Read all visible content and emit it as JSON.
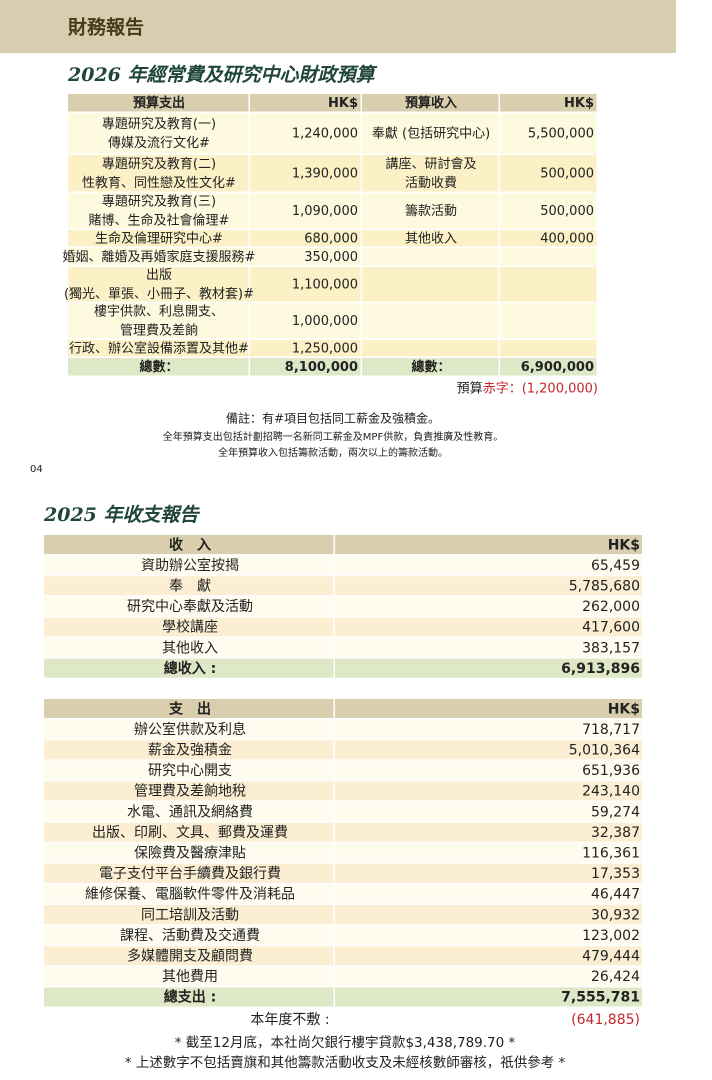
{
  "header": {
    "title": "財務報告",
    "page_number": "04"
  },
  "budget": {
    "title": "2026 年經常費及研究中心財政預算",
    "headers": [
      "預算支出",
      "HK$",
      "預算收入",
      "HK$"
    ],
    "rows": [
      {
        "expense": [
          "專題研究及教育(一)",
          "傳媒及流行文化#"
        ],
        "expense_hkd": "1,240,000",
        "income": [
          "奉獻 (包括研究中心)"
        ],
        "income_hkd": "5,500,000"
      },
      {
        "expense": [
          "專題研究及教育(二)",
          "性教育、同性戀及性文化#"
        ],
        "expense_hkd": "1,390,000",
        "income": [
          "講座、研討會及",
          "活動收費"
        ],
        "income_hkd": "500,000"
      },
      {
        "expense": [
          "專題研究及教育(三)",
          "賭博、生命及社會倫理#"
        ],
        "expense_hkd": "1,090,000",
        "income": [
          "籌款活動"
        ],
        "income_hkd": "500,000"
      },
      {
        "expense": [
          "生命及倫理研究中心#"
        ],
        "expense_hkd": "680,000",
        "income": [
          "其他收入"
        ],
        "income_hkd": "400,000"
      },
      {
        "expense": [
          "婚姻、離婚及再婚家庭支援服務#"
        ],
        "expense_hkd": "350,000"
      },
      {
        "expense": [
          "出版",
          "(獨光、單張、小冊子、教材套)#"
        ],
        "expense_hkd": "1,100,000"
      },
      {
        "expense": [
          "樓宇供款、利息開支、",
          "管理費及差餉"
        ],
        "expense_hkd": "1,000,000"
      },
      {
        "expense": [
          "行政、辦公室設備添置及其他#"
        ],
        "expense_hkd": "1,250,000"
      }
    ],
    "total": [
      "總數：",
      "8,100,000",
      "總數：",
      "6,900,000"
    ],
    "deficit": {
      "label": "預算",
      "value": "赤字：(1,200,000)"
    },
    "notes": [
      "備註：有#項目包括同工薪金及強積金。",
      "全年預算支出包括計劃招聘一名新同工薪金及MPF供款，負責推廣及性教育。",
      "全年預算收入包括籌款活動，兩次以上的籌款活動。"
    ]
  },
  "report": {
    "title": "2025 年收支報告",
    "income": {
      "headers": [
        "收　入",
        "HK$"
      ],
      "rows": [
        [
          "資助辦公室按揭",
          "65,459"
        ],
        [
          "奉　獻",
          "5,785,680"
        ],
        [
          "研究中心奉獻及活動",
          "262,000"
        ],
        [
          "學校講座",
          "417,600"
        ],
        [
          "其他收入",
          "383,157"
        ]
      ],
      "total": [
        "總收入 :",
        "6,913,896"
      ]
    },
    "expense": {
      "headers": [
        "支　出",
        "HK$"
      ],
      "rows": [
        [
          "辦公室供款及利息",
          "718,717"
        ],
        [
          "薪金及強積金",
          "5,010,364"
        ],
        [
          "研究中心開支",
          "651,936"
        ],
        [
          "管理費及差餉地稅",
          "243,140"
        ],
        [
          "水電、通訊及網絡費",
          "59,274"
        ],
        [
          "出版、印刷、文具、郵費及運費",
          "32,387"
        ],
        [
          "保險費及醫療津貼",
          "116,361"
        ],
        [
          "電子支付平台手續費及銀行費",
          "17,353"
        ],
        [
          "維修保養、電腦軟件零件及消耗品",
          "46,447"
        ],
        [
          "同工培訓及活動",
          "30,932"
        ],
        [
          "課程、活動費及交通費",
          "123,002"
        ],
        [
          "多媒體開支及顧問費",
          "479,444"
        ],
        [
          "其他費用",
          "26,424"
        ]
      ],
      "total": [
        "總支出 :",
        "7,555,781"
      ]
    },
    "balance": [
      "本年度不敷 :",
      "(641,885)"
    ],
    "footnotes": [
      "* 截至12月底，本社尚欠銀行樓宇貸款$3,438,789.70 *",
      "* 上述數字不包括賣旗和其他籌款活動收支及未經核數師審核，祇供參考 *"
    ]
  }
}
